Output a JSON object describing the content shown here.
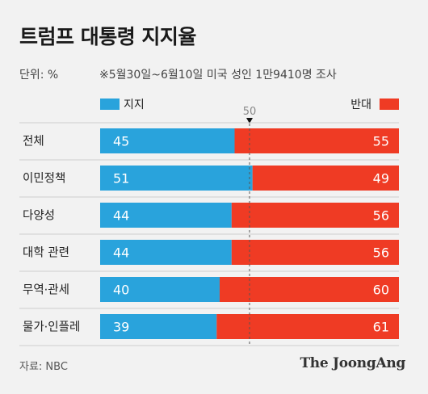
{
  "title": "트럼프 대통령 지지율",
  "unit": "단위: %",
  "note": "※5월30일~6월10일 미국 성인 1만9410명 조사",
  "source": "자료: NBC",
  "brand": "The JoongAng",
  "colors": {
    "support": "#29a3dc",
    "oppose": "#ef3b24",
    "midline": "#555555"
  },
  "chart_data": {
    "type": "bar",
    "orientation": "horizontal",
    "stacked": true,
    "xlim": [
      0,
      100
    ],
    "reference_line": {
      "value": 50,
      "label": "50"
    },
    "legend_position": "top",
    "categories": [
      "전체",
      "이민정책",
      "다양성",
      "대학 관련",
      "무역·관세",
      "물가·인플레"
    ],
    "series": [
      {
        "name": "지지",
        "values": [
          45,
          51,
          44,
          44,
          40,
          39
        ]
      },
      {
        "name": "반대",
        "values": [
          55,
          49,
          56,
          56,
          60,
          61
        ]
      }
    ]
  }
}
